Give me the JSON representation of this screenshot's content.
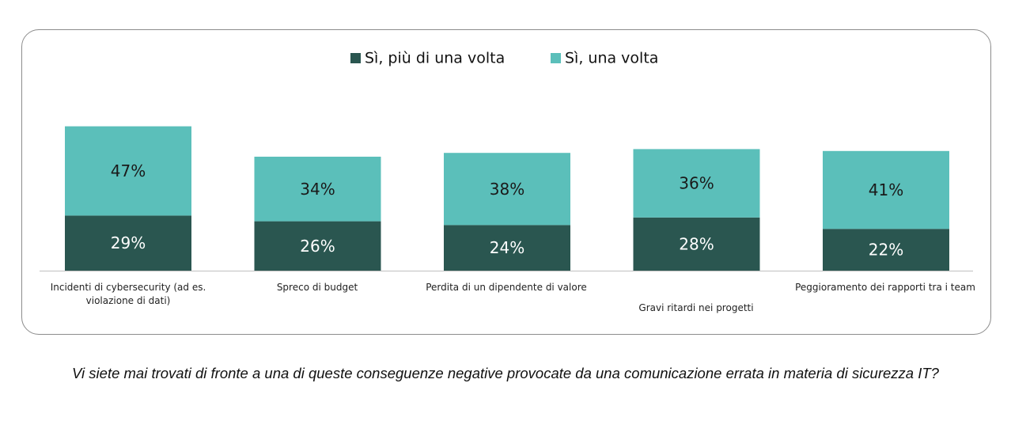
{
  "chart_data": {
    "type": "bar",
    "stacked": true,
    "categories": [
      "Incidenti di cybersecurity (ad es. violazione di dati)",
      "Spreco di budget",
      "Perdita di un dipendente di valore",
      "Gravi ritardi nei progetti",
      "Peggioramento dei rapporti tra i team"
    ],
    "series": [
      {
        "name": "Sì, più di una volta",
        "values": [
          29,
          26,
          24,
          28,
          22
        ],
        "labels": [
          "29%",
          "26%",
          "24%",
          "28%",
          "22%"
        ],
        "color": "#2a5650"
      },
      {
        "name": "Sì, una volta",
        "values": [
          47,
          34,
          38,
          36,
          41
        ],
        "labels": [
          "47%",
          "34%",
          "38%",
          "36%",
          "41%"
        ],
        "color": "#5bbfba"
      }
    ],
    "legend_position": "top-center",
    "grid": false
  },
  "caption": "Vi siete mai trovati di fronte a una di queste conseguenze negative provocate da una comunicazione errata in materia di sicurezza IT?"
}
